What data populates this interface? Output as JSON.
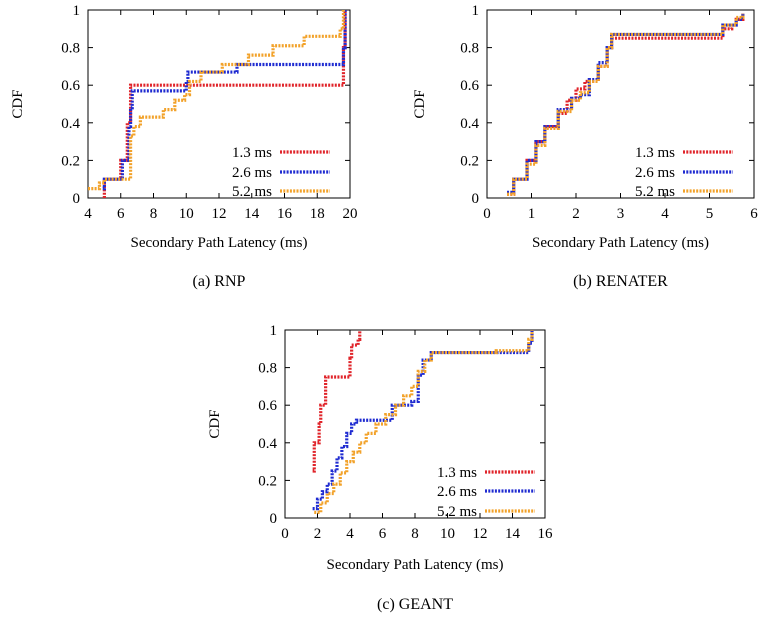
{
  "colors": {
    "s13": "#e0242a",
    "s26": "#1f2bd1",
    "s52": "#f2a22a"
  },
  "chart_data": [
    {
      "type": "line",
      "caption": "(a)  RNP",
      "xlabel": "Secondary Path Latency (ms)",
      "ylabel": "CDF",
      "xlim": [
        4,
        20
      ],
      "ylim": [
        0,
        1
      ],
      "xticks": [
        "4",
        "6",
        "8",
        "10",
        "12",
        "14",
        "16",
        "18",
        "20"
      ],
      "yticks": [
        "0",
        "0.2",
        "0.4",
        "0.6",
        "0.8",
        "1"
      ],
      "legend_position": "bottom-right",
      "series": [
        {
          "name": "1.3 ms",
          "color": "#e0242a",
          "x": [
            5.0,
            5.0,
            5.9,
            6.0,
            6.3,
            6.4,
            6.5,
            6.6,
            19.5,
            19.6,
            19.7
          ],
          "y": [
            0.0,
            0.1,
            0.1,
            0.2,
            0.2,
            0.4,
            0.4,
            0.6,
            0.6,
            0.8,
            1.0
          ]
        },
        {
          "name": "2.6 ms",
          "color": "#1f2bd1",
          "x": [
            4.9,
            5.0,
            6.0,
            6.1,
            6.4,
            6.5,
            6.6,
            6.7,
            9.8,
            10.0,
            10.1,
            13.0,
            13.1,
            19.4,
            19.6,
            19.7
          ],
          "y": [
            0.05,
            0.1,
            0.1,
            0.2,
            0.2,
            0.38,
            0.48,
            0.57,
            0.57,
            0.62,
            0.67,
            0.67,
            0.71,
            0.71,
            0.8,
            1.0
          ]
        },
        {
          "name": "5.2 ms",
          "color": "#f2a22a",
          "x": [
            4.0,
            4.6,
            4.7,
            5.0,
            6.0,
            6.6,
            6.8,
            7.2,
            7.8,
            8.6,
            9.3,
            9.9,
            10.2,
            10.9,
            11.2,
            12.2,
            12.7,
            13.8,
            14.6,
            15.3,
            16.0,
            17.2,
            18.0,
            19.4,
            19.6
          ],
          "y": [
            0.05,
            0.05,
            0.08,
            0.1,
            0.1,
            0.33,
            0.38,
            0.43,
            0.43,
            0.47,
            0.52,
            0.55,
            0.62,
            0.67,
            0.67,
            0.71,
            0.71,
            0.76,
            0.76,
            0.81,
            0.81,
            0.86,
            0.86,
            0.9,
            1.0
          ]
        }
      ]
    },
    {
      "type": "line",
      "caption": "(b)  RENATER",
      "xlabel": "Secondary Path Latency (ms)",
      "ylabel": "CDF",
      "xlim": [
        0,
        6
      ],
      "ylim": [
        0,
        1
      ],
      "xticks": [
        "0",
        "1",
        "2",
        "3",
        "4",
        "5",
        "6"
      ],
      "yticks": [
        "0",
        "0.2",
        "0.4",
        "0.6",
        "0.8",
        "1"
      ],
      "legend_position": "bottom-right",
      "series": [
        {
          "name": "1.3 ms",
          "color": "#e0242a",
          "x": [
            0.45,
            0.6,
            0.9,
            1.1,
            1.3,
            1.6,
            1.8,
            2.0,
            2.2,
            2.5,
            2.7,
            2.8,
            5.1,
            5.3,
            5.5,
            5.6,
            5.75
          ],
          "y": [
            0.02,
            0.1,
            0.2,
            0.3,
            0.38,
            0.45,
            0.52,
            0.58,
            0.62,
            0.7,
            0.8,
            0.85,
            0.85,
            0.9,
            0.92,
            0.95,
            0.98
          ]
        },
        {
          "name": "2.6 ms",
          "color": "#1f2bd1",
          "x": [
            0.45,
            0.6,
            0.9,
            1.1,
            1.3,
            1.6,
            1.9,
            2.1,
            2.3,
            2.5,
            2.7,
            2.8,
            5.1,
            5.3,
            5.5,
            5.6,
            5.75
          ],
          "y": [
            0.03,
            0.1,
            0.2,
            0.3,
            0.38,
            0.47,
            0.53,
            0.55,
            0.63,
            0.72,
            0.8,
            0.87,
            0.87,
            0.92,
            0.92,
            0.95,
            0.98
          ]
        },
        {
          "name": "5.2 ms",
          "color": "#f2a22a",
          "x": [
            0.45,
            0.6,
            0.9,
            1.1,
            1.3,
            1.6,
            1.9,
            2.1,
            2.3,
            2.5,
            2.7,
            2.8,
            5.1,
            5.3,
            5.5,
            5.6,
            5.75
          ],
          "y": [
            0.02,
            0.1,
            0.18,
            0.28,
            0.37,
            0.46,
            0.52,
            0.56,
            0.62,
            0.7,
            0.8,
            0.87,
            0.87,
            0.92,
            0.92,
            0.96,
            0.98
          ]
        }
      ]
    },
    {
      "type": "line",
      "caption": "(c)  GEANT",
      "xlabel": "Secondary Path Latency (ms)",
      "ylabel": "CDF",
      "xlim": [
        0,
        16
      ],
      "ylim": [
        0,
        1
      ],
      "xticks": [
        "0",
        "2",
        "4",
        "6",
        "8",
        "10",
        "12",
        "14",
        "16"
      ],
      "yticks": [
        "0",
        "0.2",
        "0.4",
        "0.6",
        "0.8",
        "1"
      ],
      "legend_position": "bottom-right",
      "series": [
        {
          "name": "1.3 ms",
          "color": "#e0242a",
          "x": [
            1.7,
            1.8,
            2.1,
            2.2,
            2.5,
            2.6,
            3.9,
            4.0,
            4.1,
            4.2,
            4.5,
            4.6
          ],
          "y": [
            0.25,
            0.4,
            0.5,
            0.6,
            0.75,
            0.75,
            0.75,
            0.85,
            0.92,
            0.92,
            0.95,
            1.0
          ]
        },
        {
          "name": "2.6 ms",
          "color": "#1f2bd1",
          "x": [
            1.7,
            2.0,
            2.3,
            2.6,
            2.9,
            3.2,
            3.5,
            3.8,
            4.1,
            4.4,
            6.3,
            6.6,
            7.8,
            8.2,
            8.5,
            9.0,
            14.6,
            15.0,
            15.2
          ],
          "y": [
            0.05,
            0.1,
            0.14,
            0.18,
            0.25,
            0.32,
            0.38,
            0.45,
            0.5,
            0.52,
            0.52,
            0.6,
            0.62,
            0.76,
            0.84,
            0.88,
            0.88,
            0.93,
            1.0
          ]
        },
        {
          "name": "5.2 ms",
          "color": "#f2a22a",
          "x": [
            1.8,
            2.2,
            2.6,
            3.0,
            3.4,
            3.8,
            4.2,
            4.6,
            5.0,
            5.6,
            6.2,
            6.8,
            7.3,
            7.8,
            8.2,
            8.6,
            9.0,
            12.0,
            13.0,
            14.6,
            15.0,
            15.2
          ],
          "y": [
            0.03,
            0.08,
            0.13,
            0.18,
            0.24,
            0.3,
            0.35,
            0.4,
            0.45,
            0.5,
            0.55,
            0.6,
            0.65,
            0.7,
            0.78,
            0.84,
            0.88,
            0.88,
            0.89,
            0.89,
            0.95,
            1.0
          ]
        }
      ]
    }
  ]
}
